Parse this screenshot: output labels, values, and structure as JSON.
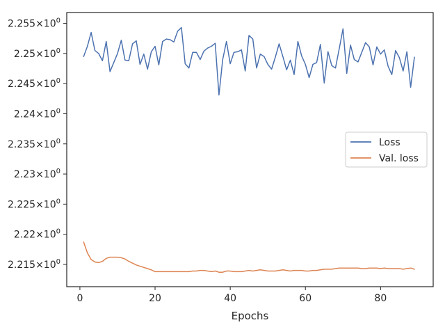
{
  "chart_data": {
    "type": "line",
    "title": "",
    "xlabel": "Epochs",
    "ylabel": "",
    "xlim": [
      -3.5,
      94
    ],
    "ylim": [
      2.2113,
      2.2568
    ],
    "x_ticks": [
      0,
      20,
      40,
      60,
      80
    ],
    "x_tick_labels": [
      "0",
      "20",
      "40",
      "60",
      "80"
    ],
    "y_ticks": [
      2.215,
      2.22,
      2.225,
      2.23,
      2.235,
      2.24,
      2.245,
      2.25,
      2.255
    ],
    "y_tick_labels": [
      {
        "base": "2.215",
        "mult": "×10",
        "exp": "0"
      },
      {
        "base": "2.22",
        "mult": "×10",
        "exp": "0"
      },
      {
        "base": "2.225",
        "mult": "×10",
        "exp": "0"
      },
      {
        "base": "2.23",
        "mult": "×10",
        "exp": "0"
      },
      {
        "base": "2.235",
        "mult": "×10",
        "exp": "0"
      },
      {
        "base": "2.24",
        "mult": "×10",
        "exp": "0"
      },
      {
        "base": "2.245",
        "mult": "×10",
        "exp": "0"
      },
      {
        "base": "2.25",
        "mult": "×10",
        "exp": "0"
      },
      {
        "base": "2.255",
        "mult": "×10",
        "exp": "0"
      }
    ],
    "grid": false,
    "legend_position": "center-right",
    "series": [
      {
        "name": "Loss",
        "color": "#4c72b0",
        "x": [
          1,
          2,
          3,
          4,
          5,
          6,
          7,
          8,
          9,
          10,
          11,
          12,
          13,
          14,
          15,
          16,
          17,
          18,
          19,
          20,
          21,
          22,
          23,
          24,
          25,
          26,
          27,
          28,
          29,
          30,
          31,
          32,
          33,
          34,
          35,
          36,
          37,
          38,
          39,
          40,
          41,
          42,
          43,
          44,
          45,
          46,
          47,
          48,
          49,
          50,
          51,
          52,
          53,
          54,
          55,
          56,
          57,
          58,
          59,
          60,
          61,
          62,
          63,
          64,
          65,
          66,
          67,
          68,
          69,
          70,
          71,
          72,
          73,
          74,
          75,
          76,
          77,
          78,
          79,
          80,
          81,
          82,
          83,
          84,
          85,
          86,
          87,
          88,
          89
        ],
        "values": [
          2.2495,
          2.2512,
          2.2535,
          2.2505,
          2.25,
          2.2488,
          2.252,
          2.247,
          2.2485,
          2.25,
          2.2522,
          2.2489,
          2.2488,
          2.2516,
          2.2521,
          2.2482,
          2.2499,
          2.2474,
          2.2503,
          2.2512,
          2.2481,
          2.252,
          2.2524,
          2.2523,
          2.2519,
          2.2537,
          2.2543,
          2.2483,
          2.2476,
          2.2502,
          2.2502,
          2.249,
          2.2504,
          2.2509,
          2.2512,
          2.2517,
          2.2431,
          2.249,
          2.252,
          2.2483,
          2.2502,
          2.2503,
          2.2506,
          2.2471,
          2.253,
          2.2524,
          2.2476,
          2.2499,
          2.2495,
          2.2482,
          2.2474,
          2.2494,
          2.2516,
          2.2495,
          2.2473,
          2.2489,
          2.2465,
          2.252,
          2.2496,
          2.2482,
          2.246,
          2.2482,
          2.2485,
          2.2515,
          2.2451,
          2.2503,
          2.248,
          2.2476,
          2.2508,
          2.2541,
          2.2467,
          2.2514,
          2.249,
          2.2486,
          2.2502,
          2.2518,
          2.2511,
          2.2481,
          2.2511,
          2.2499,
          2.2506,
          2.2479,
          2.2465,
          2.2505,
          2.2493,
          2.2471,
          2.2503,
          2.2444,
          2.2494
        ]
      },
      {
        "name": "Val. loss",
        "color": "#dd8452",
        "x": [
          1,
          2,
          3,
          4,
          5,
          6,
          7,
          8,
          9,
          10,
          11,
          12,
          13,
          14,
          15,
          16,
          17,
          18,
          19,
          20,
          21,
          22,
          23,
          24,
          25,
          26,
          27,
          28,
          29,
          30,
          31,
          32,
          33,
          34,
          35,
          36,
          37,
          38,
          39,
          40,
          41,
          42,
          43,
          44,
          45,
          46,
          47,
          48,
          49,
          50,
          51,
          52,
          53,
          54,
          55,
          56,
          57,
          58,
          59,
          60,
          61,
          62,
          63,
          64,
          65,
          66,
          67,
          68,
          69,
          70,
          71,
          72,
          73,
          74,
          75,
          76,
          77,
          78,
          79,
          80,
          81,
          82,
          83,
          84,
          85,
          86,
          87,
          88,
          89
        ],
        "values": [
          2.2187,
          2.2169,
          2.2158,
          2.2154,
          2.2153,
          2.2155,
          2.216,
          2.2162,
          2.2162,
          2.2162,
          2.2161,
          2.2159,
          2.2155,
          2.2152,
          2.2149,
          2.2147,
          2.2145,
          2.2143,
          2.2141,
          2.2138,
          2.2138,
          2.2138,
          2.2138,
          2.2138,
          2.2138,
          2.2138,
          2.2138,
          2.2138,
          2.2138,
          2.2139,
          2.2139,
          2.214,
          2.214,
          2.2139,
          2.2138,
          2.2139,
          2.2137,
          2.2137,
          2.2139,
          2.2139,
          2.2138,
          2.2138,
          2.2138,
          2.2139,
          2.214,
          2.2139,
          2.214,
          2.2141,
          2.214,
          2.2139,
          2.2139,
          2.2139,
          2.214,
          2.2141,
          2.214,
          2.2139,
          2.214,
          2.214,
          2.214,
          2.2139,
          2.2139,
          2.214,
          2.214,
          2.2141,
          2.2142,
          2.2142,
          2.2142,
          2.2143,
          2.2144,
          2.2144,
          2.2144,
          2.2144,
          2.2144,
          2.2144,
          2.2143,
          2.2143,
          2.2144,
          2.2144,
          2.2144,
          2.2143,
          2.2144,
          2.2143,
          2.2143,
          2.2143,
          2.2143,
          2.2142,
          2.2143,
          2.2144,
          2.2142
        ]
      }
    ]
  }
}
